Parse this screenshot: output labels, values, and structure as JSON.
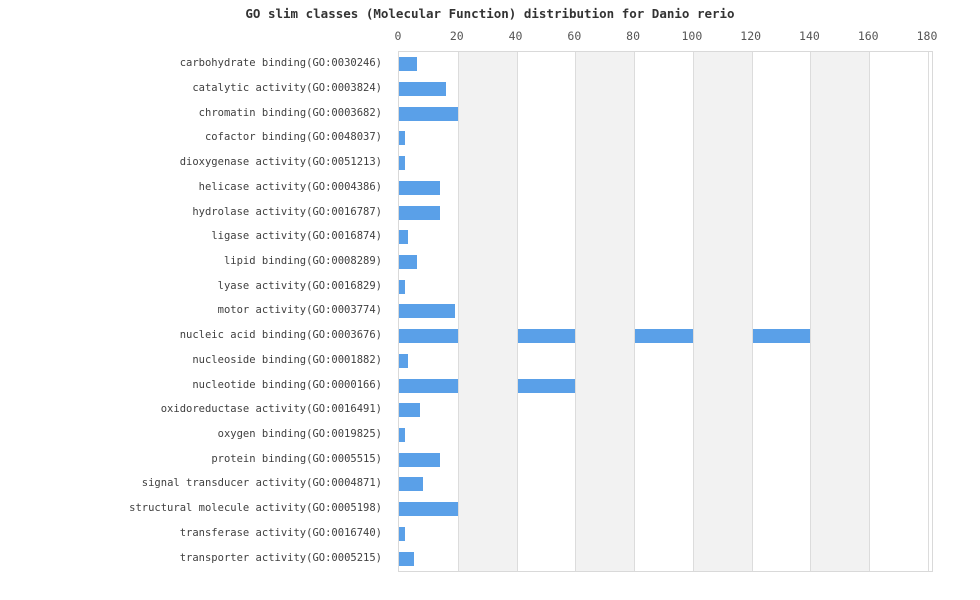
{
  "title": "GO slim classes (Molecular Function) distribution for Danio rerio",
  "chart_data": {
    "type": "bar",
    "orientation": "horizontal",
    "title": "GO slim classes (Molecular Function) distribution for Danio rerio",
    "xlabel": "",
    "ylabel": "",
    "xlim": [
      0,
      180
    ],
    "x_ticks": [
      0,
      20,
      40,
      60,
      80,
      100,
      120,
      140,
      160,
      180
    ],
    "tick_position": "top",
    "grid": true,
    "alternating_bands": true,
    "legend": "none",
    "bar_color": "#5aa0e8",
    "band_color": "#f2f2f2",
    "gridline_color": "#dcdcdc",
    "categories": [
      "carbohydrate binding(GO:0030246)",
      "catalytic activity(GO:0003824)",
      "chromatin binding(GO:0003682)",
      "cofactor binding(GO:0048037)",
      "dioxygenase activity(GO:0051213)",
      "helicase activity(GO:0004386)",
      "hydrolase activity(GO:0016787)",
      "ligase activity(GO:0016874)",
      "lipid binding(GO:0008289)",
      "lyase activity(GO:0016829)",
      "motor activity(GO:0003774)",
      "nucleic acid binding(GO:0003676)",
      "nucleoside binding(GO:0001882)",
      "nucleotide binding(GO:0000166)",
      "oxidoreductase activity(GO:0016491)",
      "oxygen binding(GO:0019825)",
      "protein binding(GO:0005515)",
      "signal transducer activity(GO:0004871)",
      "structural molecule activity(GO:0005198)",
      "transferase activity(GO:0016740)",
      "transporter activity(GO:0005215)"
    ],
    "values": [
      6,
      16,
      25,
      2,
      2,
      14,
      14,
      3,
      6,
      2,
      19,
      148,
      3,
      66,
      7,
      2,
      14,
      8,
      23,
      2,
      5
    ]
  }
}
